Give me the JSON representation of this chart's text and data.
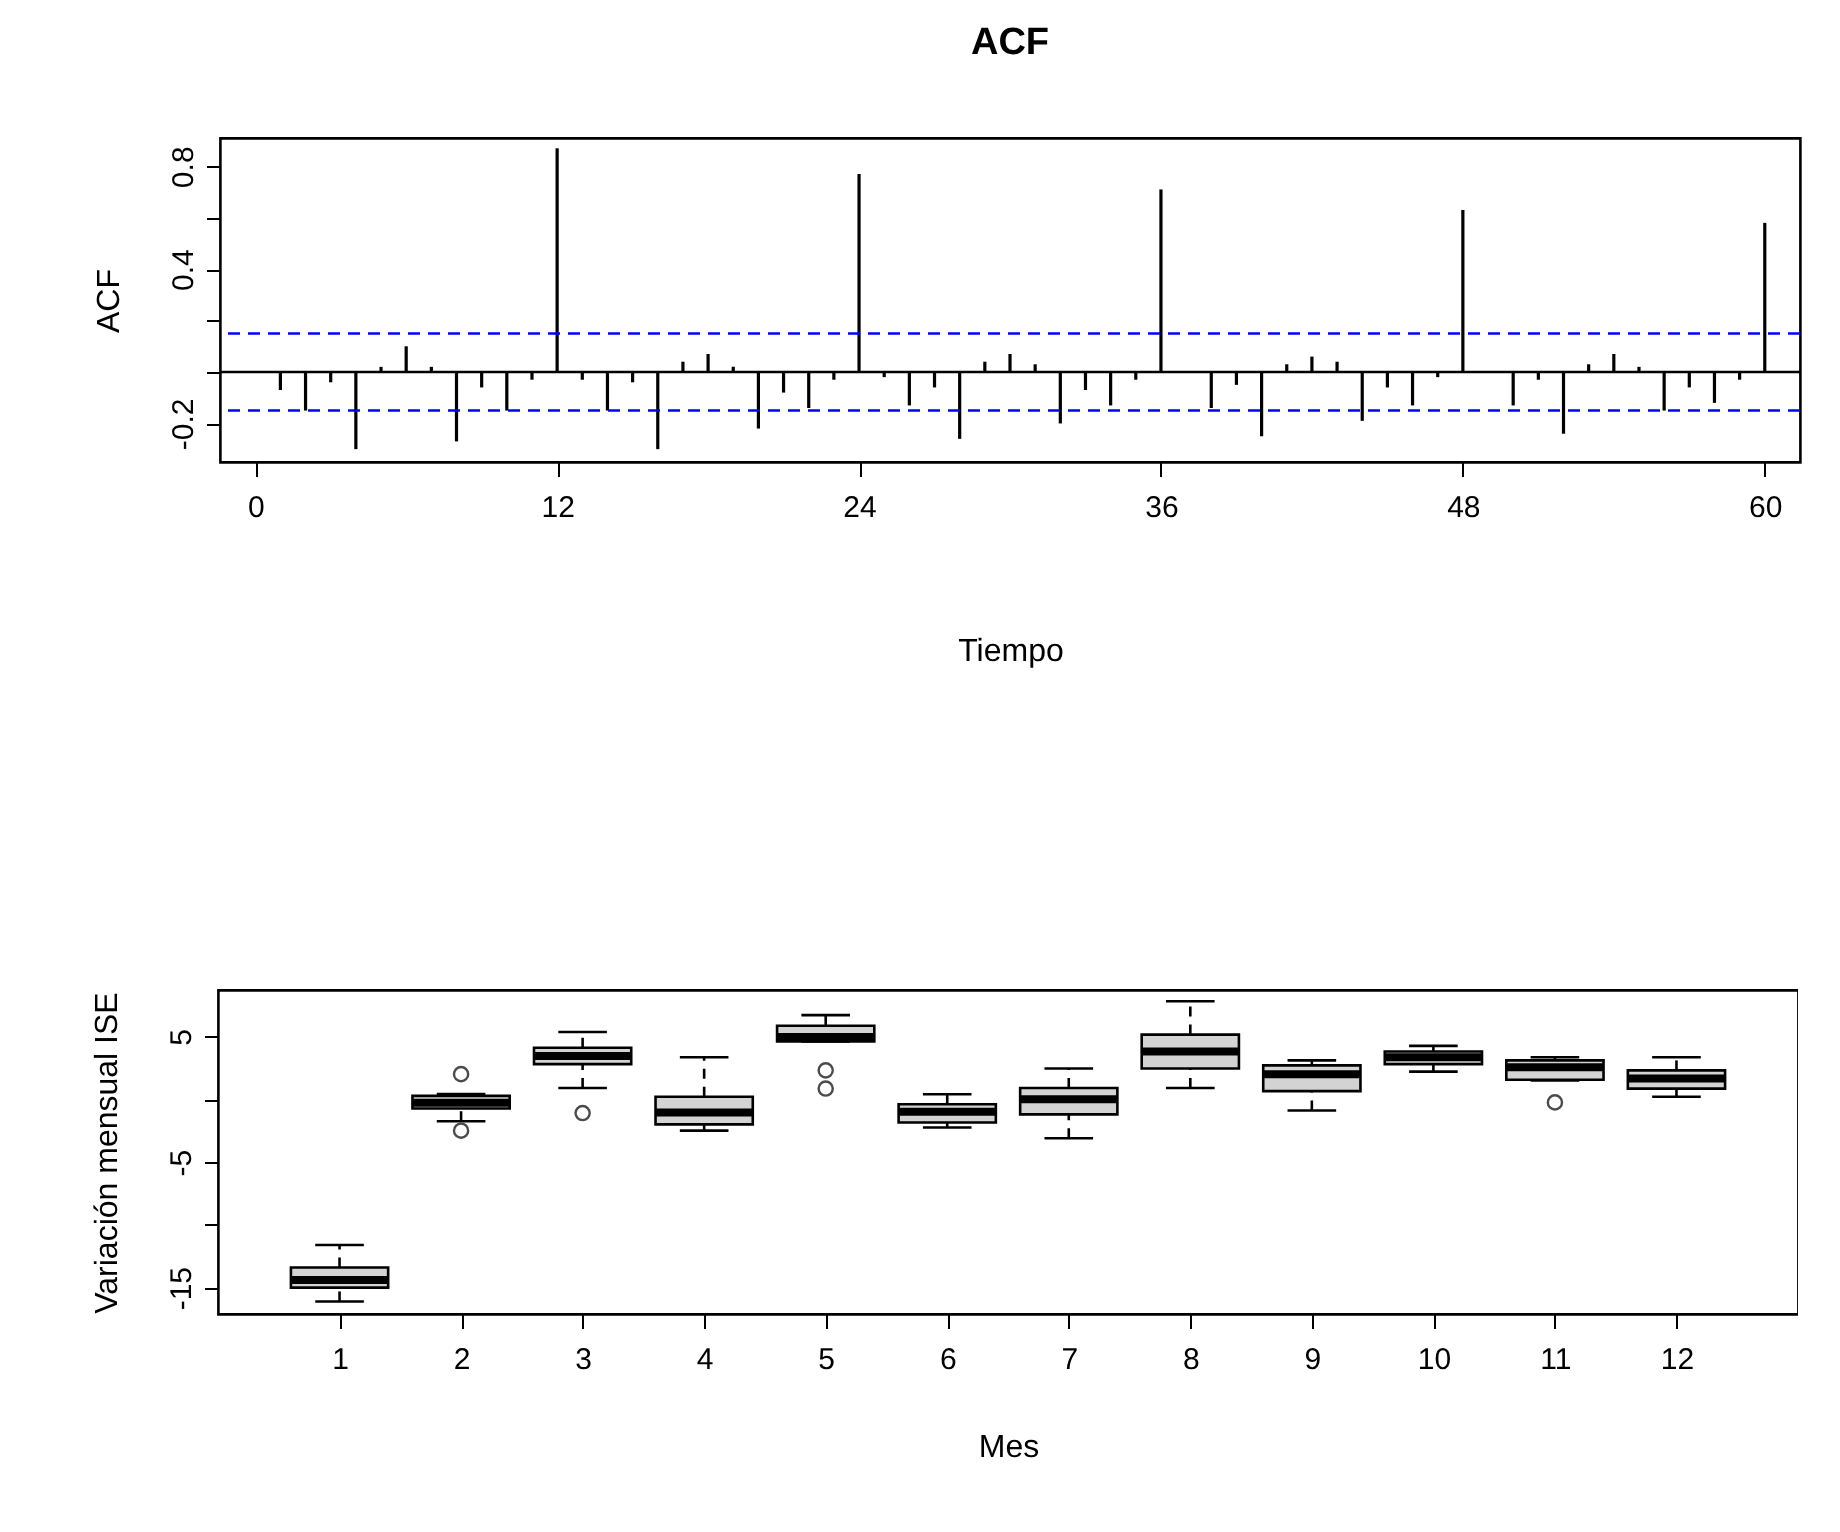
{
  "chart_data": [
    {
      "type": "bar",
      "title": "ACF",
      "xlabel": "Tiempo",
      "ylabel": "ACF",
      "x": [
        1,
        2,
        3,
        4,
        5,
        6,
        7,
        8,
        9,
        10,
        11,
        12,
        13,
        14,
        15,
        16,
        17,
        18,
        19,
        20,
        21,
        22,
        23,
        24,
        25,
        26,
        27,
        28,
        29,
        30,
        31,
        32,
        33,
        34,
        35,
        36,
        37,
        38,
        39,
        40,
        41,
        42,
        43,
        44,
        45,
        46,
        47,
        48,
        49,
        50,
        51,
        52,
        53,
        54,
        55,
        56,
        57,
        58,
        59,
        60
      ],
      "values": [
        -0.07,
        -0.15,
        -0.04,
        -0.3,
        0.02,
        0.1,
        0.02,
        -0.27,
        -0.06,
        -0.15,
        -0.03,
        0.87,
        -0.03,
        -0.15,
        -0.04,
        -0.3,
        0.04,
        0.07,
        0.02,
        -0.22,
        -0.08,
        -0.14,
        -0.03,
        0.77,
        -0.02,
        -0.13,
        -0.06,
        -0.26,
        0.04,
        0.07,
        0.03,
        -0.2,
        -0.07,
        -0.13,
        -0.03,
        0.71,
        null,
        -0.14,
        -0.05,
        -0.25,
        0.03,
        0.06,
        0.04,
        -0.19,
        -0.06,
        -0.13,
        -0.02,
        0.63,
        null,
        -0.13,
        -0.03,
        -0.24,
        0.03,
        0.07,
        0.02,
        -0.15,
        -0.06,
        -0.12,
        -0.03,
        0.58
      ],
      "color": "#000000",
      "xlim": [
        -1.4,
        61.4
      ],
      "ylim": [
        -0.35,
        0.91
      ],
      "xticks": [
        0,
        12,
        24,
        36,
        48,
        60
      ],
      "yticks": [
        -0.2,
        {
          "value": 0,
          "label": null
        },
        {
          "value": 0.2,
          "label": null
        },
        0.4,
        {
          "value": 0.6,
          "label": null
        },
        0.8
      ],
      "ref_lines": [
        {
          "axis": "y",
          "value": 0,
          "color": "#000000",
          "line_style": "solid"
        },
        {
          "axis": "y",
          "value": 0.15,
          "color": "#0000ff",
          "line_style": "dashed"
        },
        {
          "axis": "y",
          "value": -0.15,
          "color": "#0000ff",
          "line_style": "dashed"
        }
      ]
    },
    {
      "type": "box",
      "xlabel": "Mes",
      "ylabel": "Variación mensual ISE",
      "categories": [
        "1",
        "2",
        "3",
        "4",
        "5",
        "6",
        "7",
        "8",
        "9",
        "10",
        "11",
        "12"
      ],
      "color": "#d3d3d3",
      "boxes": [
        {
          "low": -16.1,
          "q1": -15.0,
          "median": -14.4,
          "q3": -13.4,
          "high": -11.6
        },
        {
          "low": -1.75,
          "q1": -0.74,
          "median": -0.27,
          "q3": 0.27,
          "high": 0.42,
          "outliers": [
            2.0,
            -2.5
          ]
        },
        {
          "low": 0.9,
          "q1": 2.8,
          "median": 3.45,
          "q3": 4.1,
          "high": 5.35,
          "outliers": [
            -1.1
          ]
        },
        {
          "low": -2.5,
          "q1": -2.0,
          "median": -1.05,
          "q3": 0.2,
          "high": 3.35
        },
        {
          "low": 4.6,
          "q1": 4.6,
          "median": 4.95,
          "q3": 5.85,
          "high": 6.7,
          "outliers": [
            2.3,
            0.85
          ]
        },
        {
          "low": -2.25,
          "q1": -1.85,
          "median": -1.0,
          "q3": -0.4,
          "high": 0.4
        },
        {
          "low": -3.1,
          "q1": -1.2,
          "median": 0.0,
          "q3": 0.9,
          "high": 2.45
        },
        {
          "low": 0.9,
          "q1": 2.45,
          "median": 3.8,
          "q3": 5.15,
          "high": 7.8
        },
        {
          "low": -0.9,
          "q1": 0.65,
          "median": 2.0,
          "q3": 2.7,
          "high": 3.1
        },
        {
          "low": 2.2,
          "q1": 2.8,
          "median": 3.35,
          "q3": 3.8,
          "high": 4.25
        },
        {
          "low": 1.5,
          "q1": 1.55,
          "median": 2.55,
          "q3": 3.1,
          "high": 3.35,
          "outliers": [
            -0.25
          ]
        },
        {
          "low": 0.2,
          "q1": 0.85,
          "median": 1.65,
          "q3": 2.3,
          "high": 3.35
        }
      ],
      "ylim": [
        -17.1,
        8.7
      ],
      "yticks": [
        -15,
        {
          "value": -10,
          "label": null
        },
        -5,
        {
          "value": 0,
          "label": null
        },
        5
      ]
    }
  ]
}
